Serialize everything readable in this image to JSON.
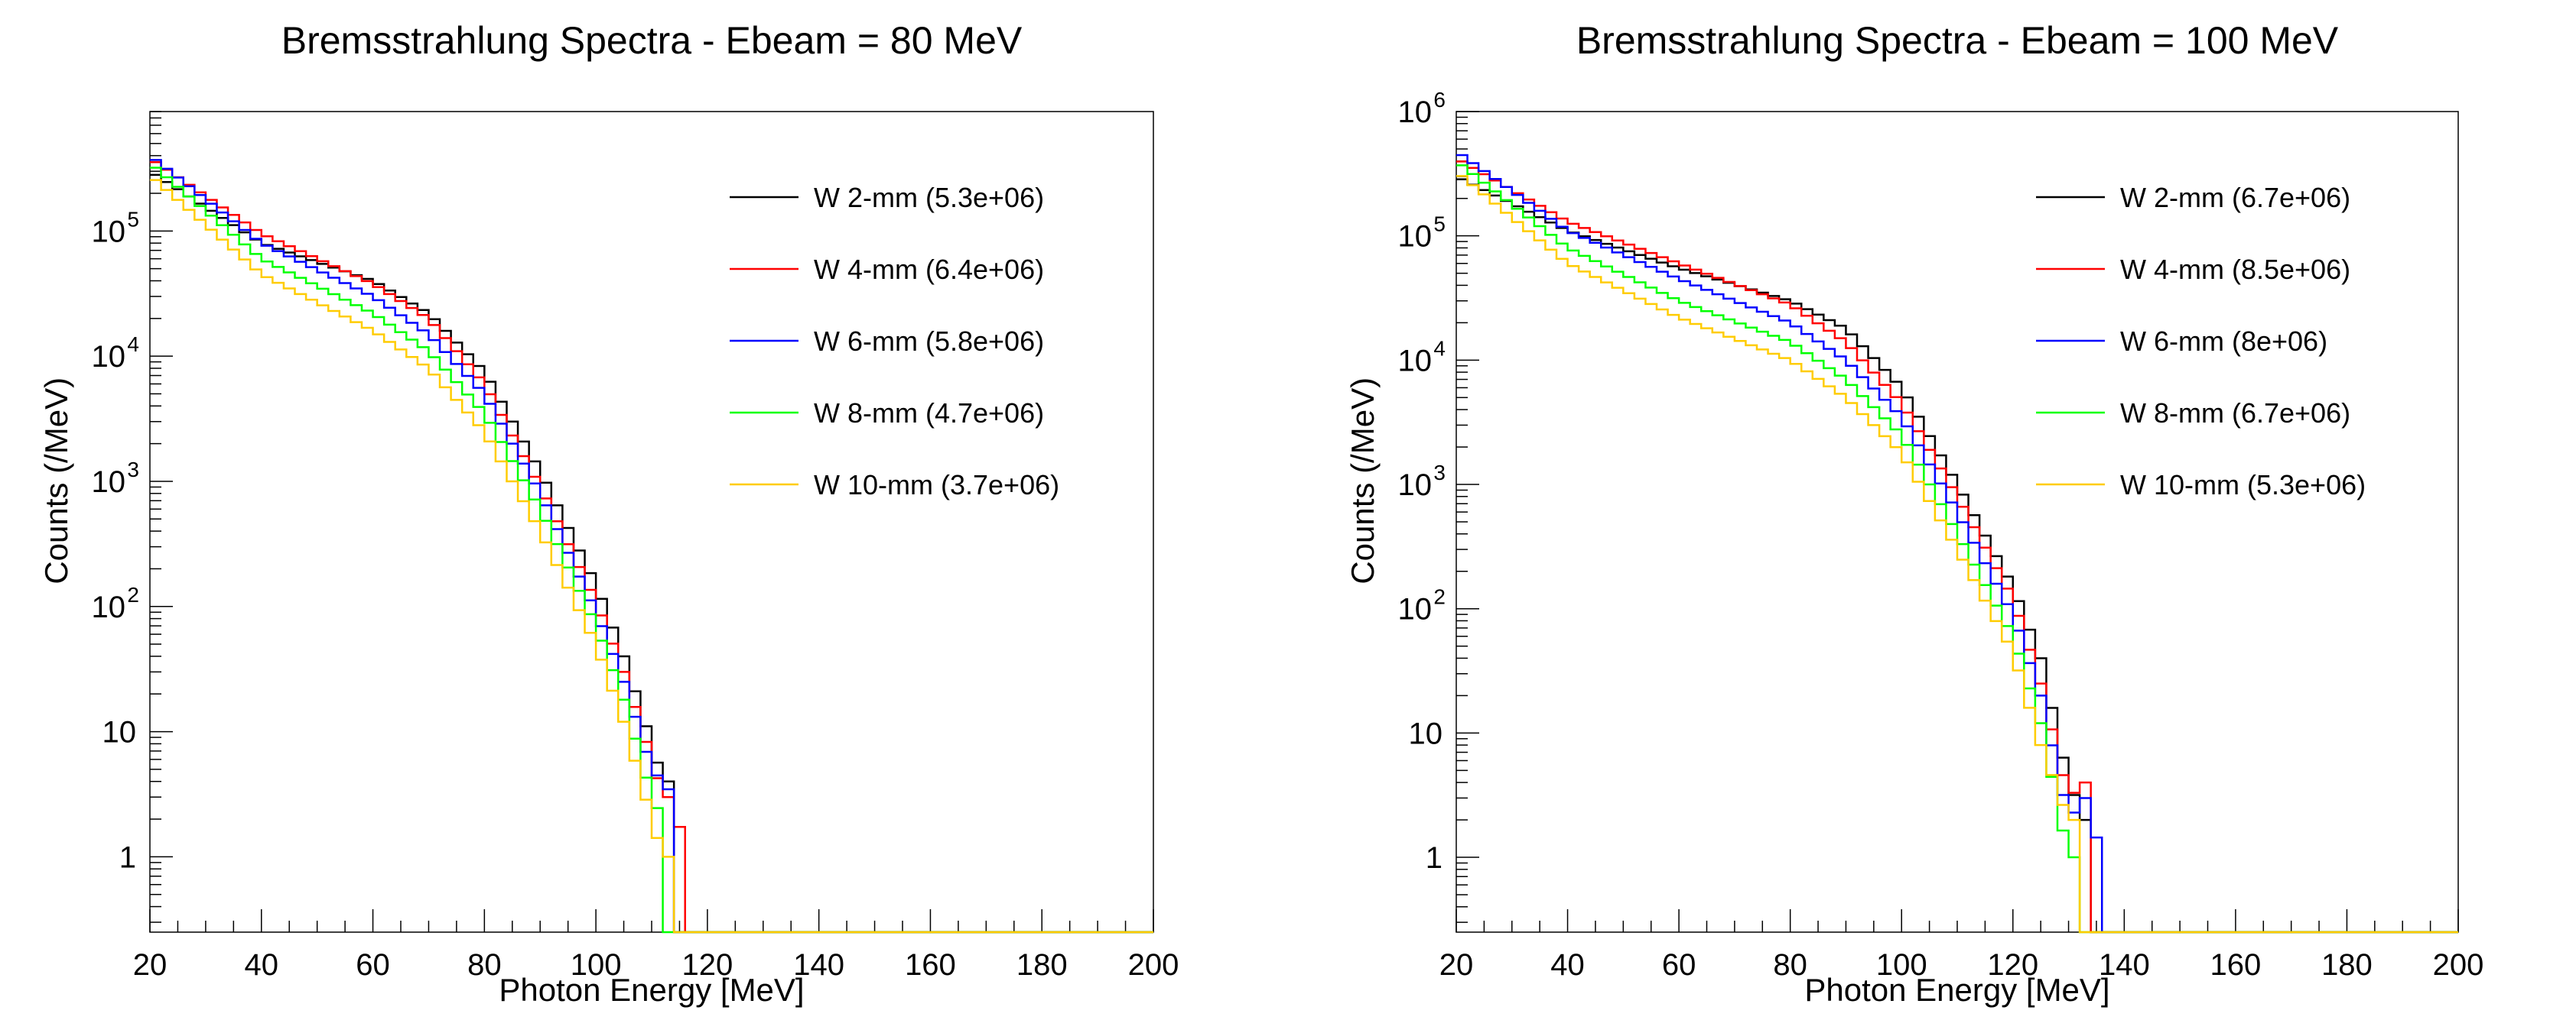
{
  "chart_data": [
    {
      "type": "line",
      "title": "Bremsstrahlung Spectra - Ebeam = 80 MeV",
      "xlabel": "Photon Energy [MeV]",
      "ylabel": "Counts (/MeV)",
      "xlim": [
        20,
        200
      ],
      "ylim": [
        0.25,
        900000
      ],
      "yscale": "log",
      "xticks": [
        "20",
        "40",
        "60",
        "80",
        "100",
        "120",
        "140",
        "160",
        "180",
        "200"
      ],
      "yticks": [
        {
          "value": 1,
          "mantissa": "1",
          "exp": ""
        },
        {
          "value": 10,
          "mantissa": "10",
          "exp": ""
        },
        {
          "value": 100,
          "mantissa": "10",
          "exp": "2"
        },
        {
          "value": 1000,
          "mantissa": "10",
          "exp": "3"
        },
        {
          "value": 10000,
          "mantissa": "10",
          "exp": "4"
        },
        {
          "value": 100000,
          "mantissa": "10",
          "exp": "5"
        }
      ],
      "legend_position": "top-right",
      "x": [
        20,
        40,
        60,
        70,
        80,
        90,
        100,
        105,
        110,
        112,
        114,
        116,
        117
      ],
      "series": [
        {
          "name": "W 2-mm (5.3e+06)",
          "color": "#000000",
          "values": [
            300000,
            80000,
            40000,
            22000,
            7500,
            1200,
            150,
            40,
            8,
            4,
            4,
            0,
            0
          ]
        },
        {
          "name": "W 4-mm (6.4e+06)",
          "color": "#ff0000",
          "values": [
            380000,
            95000,
            38000,
            20000,
            6000,
            900,
            110,
            30,
            6,
            3,
            3,
            1,
            0
          ]
        },
        {
          "name": "W 6-mm (5.8e+06)",
          "color": "#0000ff",
          "values": [
            400000,
            80000,
            30000,
            15000,
            5000,
            800,
            90,
            25,
            5,
            4,
            3,
            0,
            0
          ]
        },
        {
          "name": "W 8-mm (4.7e+06)",
          "color": "#00ff00",
          "values": [
            350000,
            60000,
            22000,
            11000,
            3500,
            600,
            70,
            18,
            3,
            2,
            0,
            0,
            0
          ]
        },
        {
          "name": "W 10-mm (3.7e+06)",
          "color": "#ffcc00",
          "values": [
            280000,
            45000,
            16000,
            8000,
            2500,
            400,
            50,
            12,
            2,
            1,
            1,
            0,
            0
          ]
        }
      ]
    },
    {
      "type": "line",
      "title": "Bremsstrahlung Spectra - Ebeam = 100 MeV",
      "xlabel": "Photon Energy [MeV]",
      "ylabel": "Counts (/MeV)",
      "xlim": [
        20,
        200
      ],
      "ylim": [
        0.25,
        1000000
      ],
      "yscale": "log",
      "xticks": [
        "20",
        "40",
        "60",
        "80",
        "100",
        "120",
        "140",
        "160",
        "180",
        "200"
      ],
      "yticks": [
        {
          "value": 1,
          "mantissa": "1",
          "exp": ""
        },
        {
          "value": 10,
          "mantissa": "10",
          "exp": ""
        },
        {
          "value": 100,
          "mantissa": "10",
          "exp": "2"
        },
        {
          "value": 1000,
          "mantissa": "10",
          "exp": "3"
        },
        {
          "value": 10000,
          "mantissa": "10",
          "exp": "4"
        },
        {
          "value": 100000,
          "mantissa": "10",
          "exp": "5"
        },
        {
          "value": 1000000,
          "mantissa": "10",
          "exp": "6"
        }
      ],
      "legend_position": "top-right",
      "x": [
        20,
        40,
        60,
        80,
        90,
        100,
        110,
        120,
        125,
        130,
        133,
        136,
        138
      ],
      "series": [
        {
          "name": "W 2-mm (6.7e+06)",
          "color": "#000000",
          "values": [
            300000,
            110000,
            55000,
            30000,
            18000,
            6000,
            1000,
            150,
            40,
            4,
            2,
            0,
            0
          ]
        },
        {
          "name": "W 4-mm (8.5e+06)",
          "color": "#ff0000",
          "values": [
            420000,
            130000,
            60000,
            28000,
            14000,
            4500,
            800,
            120,
            25,
            3,
            4,
            0,
            0
          ]
        },
        {
          "name": "W 6-mm (8e+06)",
          "color": "#0000ff",
          "values": [
            480000,
            110000,
            45000,
            20000,
            10000,
            3500,
            600,
            90,
            20,
            2,
            3,
            1,
            0
          ]
        },
        {
          "name": "W 8-mm (6.7e+06)",
          "color": "#00ff00",
          "values": [
            400000,
            80000,
            30000,
            14000,
            7000,
            2500,
            400,
            60,
            12,
            1,
            0,
            0,
            0
          ]
        },
        {
          "name": "W 10-mm (5.3e+06)",
          "color": "#ffcc00",
          "values": [
            330000,
            60000,
            22000,
            10000,
            5000,
            1800,
            300,
            45,
            8,
            2,
            0,
            0,
            0
          ]
        }
      ]
    }
  ]
}
